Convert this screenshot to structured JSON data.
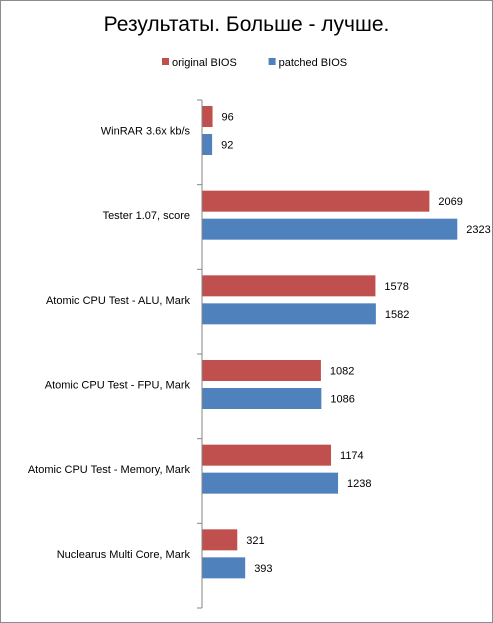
{
  "chart_data": {
    "type": "bar",
    "orientation": "horizontal",
    "title": "Результаты. Больше  - лучше.",
    "categories": [
      "WinRAR 3.6x kb/s",
      "Tester 1.07, score",
      "Atomic CPU Test - ALU, Mark",
      "Atomic CPU Test - FPU, Mark",
      "Atomic CPU Test - Memory, Mark",
      "Nuclearus Multi Core, Mark"
    ],
    "series": [
      {
        "name": "original BIOS",
        "color": "#c0504d",
        "values": [
          96,
          2069,
          1578,
          1082,
          1174,
          321
        ]
      },
      {
        "name": "patched BIOS",
        "color": "#4f81bd",
        "values": [
          92,
          2323,
          1582,
          1086,
          1238,
          393
        ]
      }
    ],
    "xlim": [
      0,
      2500
    ],
    "grid": false,
    "legend_position": "top"
  }
}
